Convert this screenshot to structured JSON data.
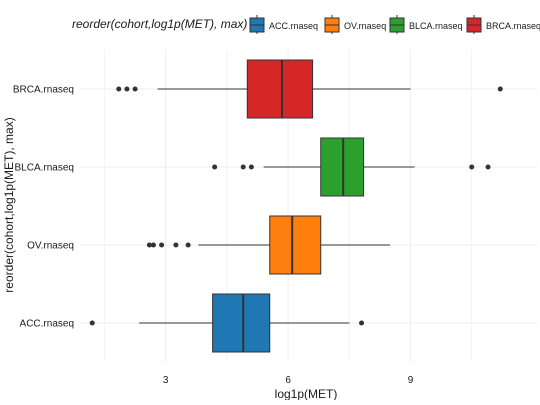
{
  "chart_data": {
    "type": "boxplot",
    "orientation": "horizontal",
    "legend_title": "reorder(cohort,log1p(MET), max)",
    "xlabel": "log1p(MET)",
    "ylabel": "reorder(cohort,log1p(MET), max)",
    "xlim": [
      0.9,
      12.1
    ],
    "x_ticks": [
      3,
      6,
      9
    ],
    "grid": true,
    "legend_position": "top",
    "categories_bottom_to_top": [
      "ACC.rnaseq",
      "OV.rnaseq",
      "BLCA.rnaseq",
      "BRCA.rnaseq"
    ],
    "legend_order": [
      "ACC.rnaseq",
      "OV.rnaseq",
      "BLCA.rnaseq",
      "BRCA.rnaseq"
    ],
    "series": [
      {
        "name": "ACC.rnaseq",
        "color": "#1f77b4",
        "whisker_low": 2.35,
        "q1": 4.15,
        "median": 4.9,
        "q3": 5.55,
        "whisker_high": 7.5,
        "outliers": [
          1.2,
          7.8
        ]
      },
      {
        "name": "OV.rnaseq",
        "color": "#ff7f0e",
        "whisker_low": 3.8,
        "q1": 5.55,
        "median": 6.1,
        "q3": 6.8,
        "whisker_high": 8.5,
        "outliers": [
          2.6,
          2.7,
          2.9,
          3.25,
          3.55
        ]
      },
      {
        "name": "BLCA.rnaseq",
        "color": "#2ca02c",
        "whisker_low": 5.4,
        "q1": 6.8,
        "median": 7.35,
        "q3": 7.85,
        "whisker_high": 9.1,
        "outliers": [
          4.2,
          4.9,
          5.1,
          10.5,
          10.9
        ]
      },
      {
        "name": "BRCA.rnaseq",
        "color": "#d62728",
        "whisker_low": 2.8,
        "q1": 5.0,
        "median": 5.85,
        "q3": 6.6,
        "whisker_high": 9.0,
        "outliers": [
          1.85,
          2.05,
          2.25,
          11.2
        ]
      }
    ]
  }
}
